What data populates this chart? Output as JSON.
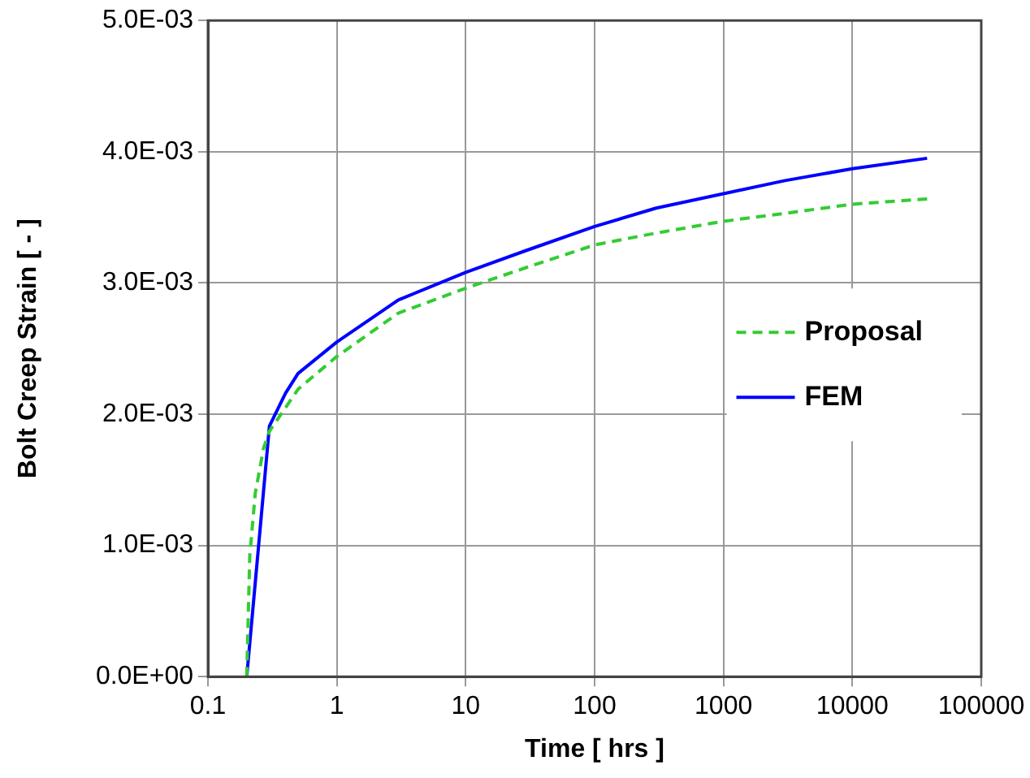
{
  "chart_data": {
    "type": "line",
    "xlabel": "Time [ hrs ]",
    "ylabel": "Bolt Creep Strain [ - ]",
    "log": "x",
    "grid": true,
    "legend": "right",
    "marker": "none",
    "xlim": [
      0.1,
      100000
    ],
    "xticks": [
      0.1,
      1,
      10,
      100,
      1000,
      10000,
      100000
    ],
    "ylim": [
      0,
      0.005
    ],
    "yticks": [
      {
        "value": 0,
        "label": "0.0E+00"
      },
      {
        "value": 0.001,
        "label": "1.0E-03"
      },
      {
        "value": 0.002,
        "label": "2.0E-03"
      },
      {
        "value": 0.003,
        "label": "3.0E-03"
      },
      {
        "value": 0.004,
        "label": "4.0E-03"
      },
      {
        "value": 0.005,
        "label": "5.0E-03"
      }
    ],
    "series": [
      {
        "name": "Proposal",
        "color": "#33cc33",
        "line_style": "dashed",
        "x": [
          0.2,
          0.211,
          0.233,
          0.27,
          0.3,
          0.5,
          1,
          3,
          10,
          30,
          100,
          300,
          1000,
          3000,
          10000,
          38000
        ],
        "values": [
          0,
          0.00092,
          0.0014,
          0.00174,
          0.00187,
          0.00219,
          0.00244,
          0.00277,
          0.00296,
          0.00312,
          0.00329,
          0.00338,
          0.00347,
          0.00353,
          0.0036,
          0.00364
        ]
      },
      {
        "name": "FEM",
        "color": "#0000ff",
        "line_style": "solid",
        "x": [
          0.2,
          0.3,
          0.4,
          0.5,
          1,
          3,
          10,
          30,
          100,
          300,
          1000,
          3000,
          10000,
          38000
        ],
        "values": [
          0,
          0.00191,
          0.00216,
          0.00231,
          0.00255,
          0.00287,
          0.00308,
          0.00325,
          0.00343,
          0.00357,
          0.00368,
          0.00378,
          0.00387,
          0.00395
        ]
      }
    ]
  }
}
